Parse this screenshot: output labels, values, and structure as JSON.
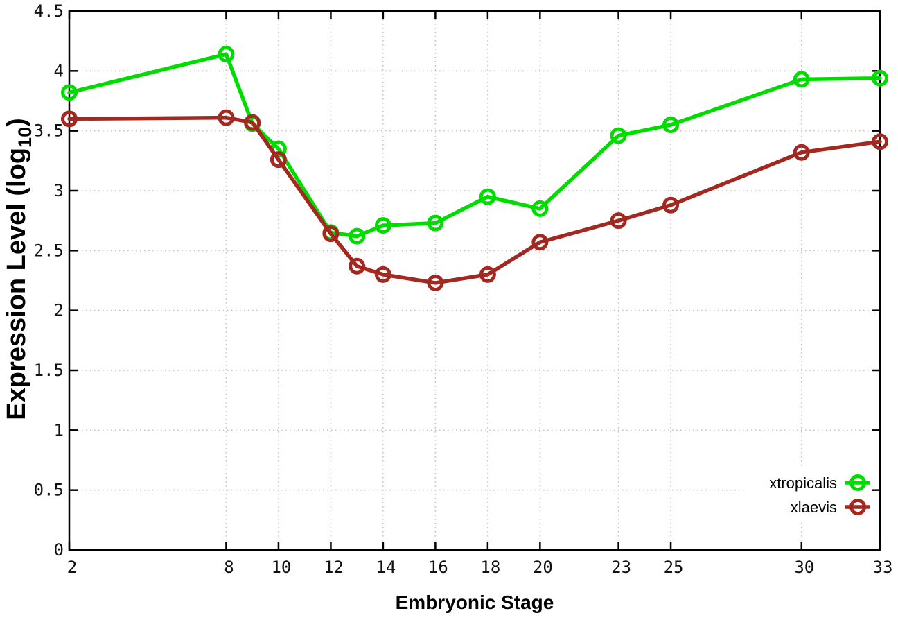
{
  "chart_data": {
    "type": "line",
    "title": "",
    "xlabel": "Embryonic Stage",
    "ylabel": "Expression Level (log10)",
    "ylabel_parts": {
      "main": "Expression Level (log",
      "sub": "10",
      "close": ")"
    },
    "x": [
      2,
      8,
      9,
      10,
      12,
      13,
      14,
      16,
      18,
      20,
      23,
      25,
      30,
      33
    ],
    "series": [
      {
        "name": "xtropicalis",
        "color": "#00dc00",
        "values": [
          3.82,
          4.14,
          3.56,
          3.35,
          2.65,
          2.62,
          2.71,
          2.73,
          2.95,
          2.85,
          3.46,
          3.55,
          3.93,
          3.94
        ]
      },
      {
        "name": "xlaevis",
        "color": "#a22820",
        "values": [
          3.6,
          3.61,
          3.57,
          3.26,
          2.64,
          2.37,
          2.3,
          2.23,
          2.3,
          2.57,
          2.75,
          2.88,
          3.32,
          3.41
        ]
      }
    ],
    "marker": "open-circle",
    "xlim": [
      2,
      33
    ],
    "ylim": [
      0,
      4.5
    ],
    "xticks": [
      2,
      8,
      10,
      12,
      14,
      16,
      18,
      20,
      23,
      25,
      30,
      33
    ],
    "xtick_labels": [
      "2",
      "8",
      "10",
      "12",
      "14",
      "16",
      "18",
      "20",
      "23",
      "25",
      "30",
      "33"
    ],
    "yticks": [
      0,
      0.5,
      1,
      1.5,
      2,
      2.5,
      3,
      3.5,
      4,
      4.5
    ],
    "ytick_labels": [
      "0",
      "0.5",
      "1",
      "1.5",
      "2",
      "2.5",
      "3",
      "3.5",
      "4",
      "4.5"
    ],
    "grid": true,
    "legend_position": "bottom-right",
    "legend": [
      "xtropicalis",
      "xlaevis"
    ]
  },
  "colors": {
    "background": "#ffffff",
    "axis": "#000000",
    "grid": "#bdbdbd",
    "text": "#111111"
  }
}
